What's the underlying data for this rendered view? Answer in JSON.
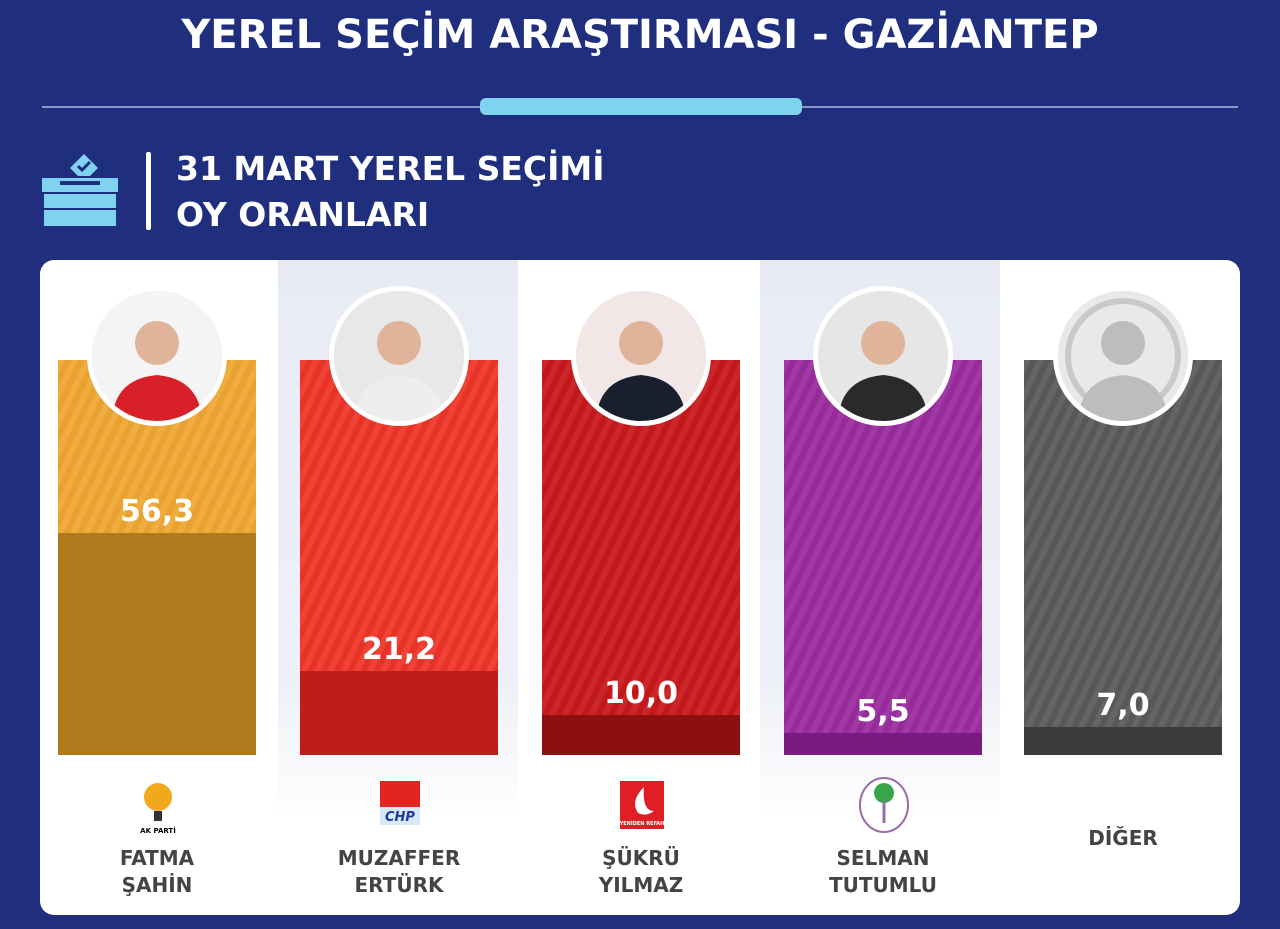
{
  "header": {
    "title": "YEREL SEÇİM ARAŞTIRMASI - GAZİANTEP",
    "subtitle_line1": "31 MART YEREL SEÇİMİ",
    "subtitle_line2": "OY ORANLARI",
    "icon": "ballot-box-icon"
  },
  "colors": {
    "background": "#1f2e7d",
    "accent": "#7fd3f0"
  },
  "chart_data": {
    "type": "bar",
    "title": "31 MART YEREL SEÇİMİ OY ORANLARI",
    "ylim": [
      0,
      100
    ],
    "categories": [
      "FATMA ŞAHİN",
      "MUZAFFER ERTÜRK",
      "ŞÜKRÜ YILMAZ",
      "SELMAN TUTUMLU",
      "DİĞER"
    ],
    "values": [
      56.3,
      21.2,
      10.0,
      5.5,
      7.0
    ],
    "value_labels": [
      "56,3",
      "21,2",
      "10,0",
      "5,5",
      "7,0"
    ],
    "items": [
      {
        "name1": "FATMA",
        "name2": "ŞAHİN",
        "party": "AK PARTİ",
        "logo": "ak-parti-logo",
        "label": "56,3",
        "value": 56.3,
        "light": "#f0a733",
        "dark": "#b07a1c"
      },
      {
        "name1": "MUZAFFER",
        "name2": "ERTÜRK",
        "party": "CHP",
        "logo": "chp-logo",
        "label": "21,2",
        "value": 21.2,
        "light": "#ee3528",
        "dark": "#bf1d1a"
      },
      {
        "name1": "ŞÜKRÜ",
        "name2": "YILMAZ",
        "party": "YENİDEN REFAH",
        "logo": "yeniden-refah-logo",
        "label": "10,0",
        "value": 10.0,
        "light": "#c8191c",
        "dark": "#8d1010"
      },
      {
        "name1": "SELMAN",
        "name2": "TUTUMLU",
        "party": "DEM",
        "logo": "dem-parti-logo",
        "label": "5,5",
        "value": 5.5,
        "light": "#9a2d9e",
        "dark": "#7b1b80"
      },
      {
        "name1": "DİĞER",
        "name2": "",
        "party": "",
        "logo": "",
        "label": "7,0",
        "value": 7.0,
        "light": "#5b5b5b",
        "dark": "#3b3b3b"
      }
    ]
  }
}
